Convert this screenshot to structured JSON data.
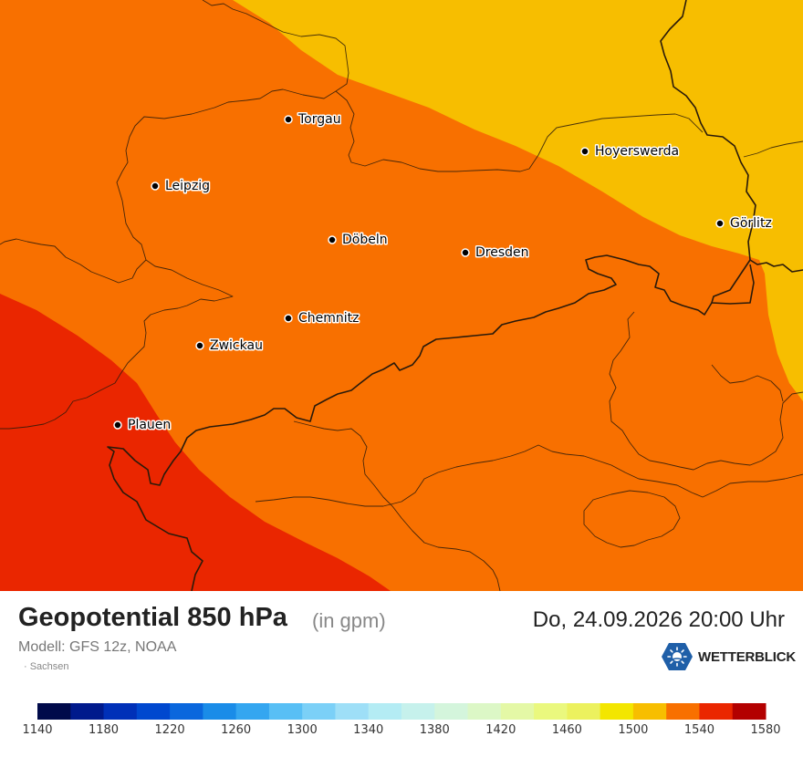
{
  "map": {
    "cities": [
      {
        "name": "Torgau",
        "icon": "dot"
      },
      {
        "name": "Leipzig",
        "icon": "dot"
      },
      {
        "name": "Hoyerswerda",
        "icon": "dot"
      },
      {
        "name": "Görlitz",
        "icon": "dot"
      },
      {
        "name": "Döbeln",
        "icon": "dot"
      },
      {
        "name": "Dresden",
        "icon": "dot"
      },
      {
        "name": "Chemnitz",
        "icon": "dot"
      },
      {
        "name": "Zwickau",
        "icon": "dot"
      },
      {
        "name": "Plauen",
        "icon": "dot"
      }
    ],
    "field_colors": {
      "1500": "#f7be00",
      "1520": "#f87000",
      "1540": "#ea2600"
    }
  },
  "footer": {
    "title": "Geopotential 850 hPa",
    "unit": "(in gpm)",
    "datetime": "Do, 24.09.2026 20:00 Uhr",
    "model": "Modell: GFS 12z, NOAA",
    "region": "· Sachsen",
    "brand": "WETTERBLICK"
  },
  "scale": {
    "labels": [
      "1140",
      "1180",
      "1220",
      "1260",
      "1300",
      "1340",
      "1380",
      "1420",
      "1460",
      "1500",
      "1540",
      "1580"
    ],
    "colors": [
      "#000a4a",
      "#001a8c",
      "#0030b8",
      "#0048cf",
      "#0a67dd",
      "#1a8ce8",
      "#34a6f0",
      "#58bff5",
      "#7bd0f7",
      "#9edff7",
      "#b4ecf4",
      "#c6f1ec",
      "#d4f5dc",
      "#dcf7c6",
      "#e4f8a6",
      "#eaf87e",
      "#ecf15e",
      "#f3e600",
      "#f7be00",
      "#f87000",
      "#ea2600",
      "#b30000"
    ]
  }
}
